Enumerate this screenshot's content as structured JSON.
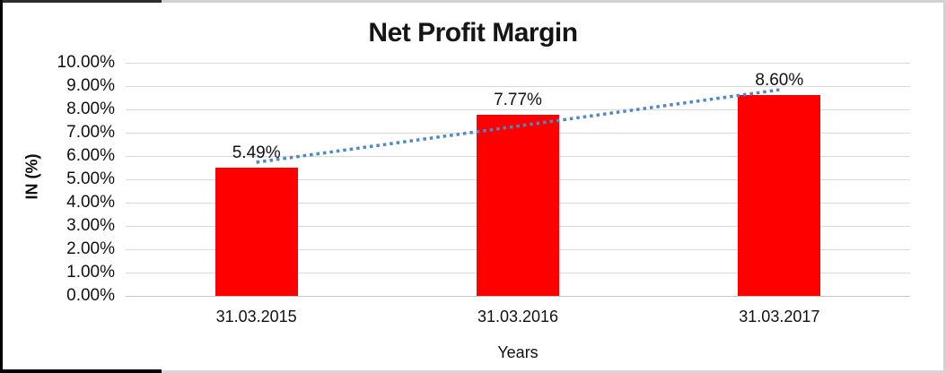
{
  "chart_data": {
    "type": "bar",
    "title": "Net Profit Margin",
    "xlabel": "Years",
    "ylabel": "IN (%)",
    "categories": [
      "31.03.2015",
      "31.03.2016",
      "31.03.2017"
    ],
    "values": [
      5.49,
      7.77,
      8.6
    ],
    "data_labels": [
      "5.49%",
      "7.77%",
      "8.60%"
    ],
    "ylim": [
      0,
      10
    ],
    "ytick_step": 1,
    "ytick_labels": [
      "0.00%",
      "1.00%",
      "2.00%",
      "3.00%",
      "4.00%",
      "5.00%",
      "6.00%",
      "7.00%",
      "8.00%",
      "9.00%",
      "10.00%"
    ],
    "grid": true,
    "legend": "none",
    "bar_color": "#FF0000",
    "gridline_color": "#d9d9d9",
    "trendline": {
      "type": "linear",
      "style": "dotted",
      "color": "#4E88C7",
      "start_value": 5.73,
      "end_value": 8.84
    }
  }
}
